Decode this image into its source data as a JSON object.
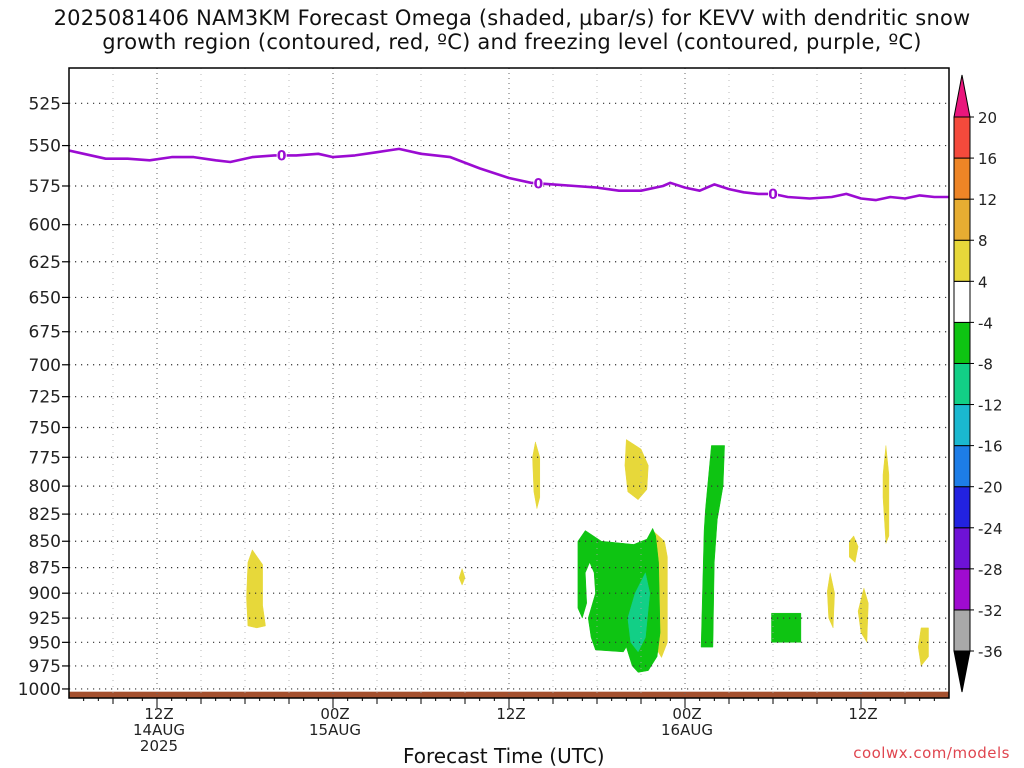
{
  "title": {
    "line1": "2025081406 NAM3KM Forecast Omega (shaded, µbar/s) for KEVV with dendritic snow",
    "line2": "growth region (contoured, red, ºC) and freezing level (contoured, purple, ºC)"
  },
  "watermark": "coolwx.com/models",
  "chart_data": {
    "type": "heatmap",
    "xlabel": "Forecast Time (UTC)",
    "ylabel": "",
    "x_range_hours": [
      6,
      66
    ],
    "ylim": [
      1010,
      505
    ],
    "y_scale": "log-pressure",
    "y_ticks": [
      525,
      550,
      575,
      600,
      625,
      650,
      675,
      700,
      725,
      750,
      775,
      800,
      825,
      850,
      875,
      900,
      925,
      950,
      975,
      1000
    ],
    "x_ticks": [
      {
        "hour": 12,
        "lines": [
          "12Z",
          "14AUG",
          "2025"
        ]
      },
      {
        "hour": 24,
        "lines": [
          "00Z",
          "15AUG"
        ]
      },
      {
        "hour": 36,
        "lines": [
          "12Z"
        ]
      },
      {
        "hour": 48,
        "lines": [
          "00Z",
          "16AUG"
        ]
      },
      {
        "hour": 60,
        "lines": [
          "12Z"
        ]
      }
    ],
    "grid": true,
    "colorbar": {
      "colors": [
        "#000000",
        "#a9a9a9",
        "#9f0bd0",
        "#6e12d6",
        "#2222e0",
        "#1d7de7",
        "#1ab8d0",
        "#12cf86",
        "#0ec412",
        "#ffffff",
        "#e7d83a",
        "#e7ad32",
        "#ee8526",
        "#f44a3c",
        "#e9167c"
      ],
      "labels": [
        "-36",
        "-32",
        "-28",
        "-24",
        "-20",
        "-16",
        "-12",
        "-8",
        "-4",
        "4",
        "8",
        "12",
        "16",
        "20"
      ],
      "levels": [
        -36,
        -32,
        -28,
        -24,
        -20,
        -16,
        -12,
        -8,
        -4,
        4,
        8,
        12,
        16,
        20
      ]
    },
    "freezing_level": {
      "color": "#9b0bd2",
      "label": "0",
      "label_hours": [
        20.5,
        38,
        54
      ],
      "points": [
        [
          6,
          553
        ],
        [
          7,
          555
        ],
        [
          8.5,
          558
        ],
        [
          10,
          558
        ],
        [
          11.5,
          559
        ],
        [
          13,
          557
        ],
        [
          14.5,
          557
        ],
        [
          16,
          559
        ],
        [
          17,
          560
        ],
        [
          18.5,
          557
        ],
        [
          20,
          556
        ],
        [
          21.5,
          556
        ],
        [
          23,
          555
        ],
        [
          24,
          557
        ],
        [
          25.5,
          556
        ],
        [
          27,
          554
        ],
        [
          28.5,
          552
        ],
        [
          30,
          555
        ],
        [
          32,
          557
        ],
        [
          34,
          564
        ],
        [
          36,
          570
        ],
        [
          37.5,
          573
        ],
        [
          39,
          574
        ],
        [
          40.5,
          575
        ],
        [
          42,
          576
        ],
        [
          43.5,
          578
        ],
        [
          45,
          578
        ],
        [
          46.5,
          575
        ],
        [
          47,
          573
        ],
        [
          48,
          576
        ],
        [
          49,
          578
        ],
        [
          50,
          574
        ],
        [
          51,
          577
        ],
        [
          52,
          579
        ],
        [
          53,
          580
        ],
        [
          54,
          580
        ],
        [
          55,
          582
        ],
        [
          56.5,
          583
        ],
        [
          58,
          582
        ],
        [
          59,
          580
        ],
        [
          60,
          583
        ],
        [
          61,
          584
        ],
        [
          62,
          582
        ],
        [
          63,
          583
        ],
        [
          64,
          581
        ],
        [
          65,
          582
        ],
        [
          66,
          582
        ]
      ]
    },
    "omega_areas": [
      {
        "value": 4,
        "color": "#e7d83a",
        "polygon": [
          [
            18.5,
            858
          ],
          [
            19.2,
            872
          ],
          [
            19.2,
            912
          ],
          [
            19.4,
            933
          ],
          [
            18.8,
            935
          ],
          [
            18.2,
            933
          ],
          [
            18.1,
            905
          ],
          [
            18.2,
            870
          ]
        ]
      },
      {
        "value": 4,
        "color": "#e7d83a",
        "polygon": [
          [
            32.8,
            876
          ],
          [
            33,
            885
          ],
          [
            32.8,
            892
          ],
          [
            32.6,
            885
          ]
        ]
      },
      {
        "value": 4,
        "color": "#e7d83a",
        "polygon": [
          [
            37.8,
            762
          ],
          [
            38.1,
            775
          ],
          [
            38.1,
            810
          ],
          [
            37.9,
            820
          ],
          [
            37.7,
            805
          ],
          [
            37.6,
            775
          ]
        ]
      },
      {
        "value": 4,
        "color": "#e7d83a",
        "polygon": [
          [
            44,
            760
          ],
          [
            45,
            768
          ],
          [
            45.5,
            782
          ],
          [
            45.4,
            803
          ],
          [
            44.8,
            812
          ],
          [
            44.1,
            805
          ],
          [
            43.9,
            782
          ]
        ]
      },
      {
        "value": 4,
        "color": "#e7d83a",
        "polygon": [
          [
            45.8,
            840
          ],
          [
            46.6,
            850
          ],
          [
            46.8,
            865
          ],
          [
            46.8,
            950
          ],
          [
            46.4,
            966
          ],
          [
            45.8,
            950
          ],
          [
            45.6,
            870
          ]
        ]
      },
      {
        "value": 4,
        "color": "#e7d83a",
        "polygon": [
          [
            59.5,
            845
          ],
          [
            59.8,
            855
          ],
          [
            59.6,
            870
          ],
          [
            59.2,
            865
          ],
          [
            59.2,
            850
          ]
        ]
      },
      {
        "value": 4,
        "color": "#e7d83a",
        "polygon": [
          [
            61.7,
            765
          ],
          [
            61.9,
            790
          ],
          [
            61.9,
            845
          ],
          [
            61.7,
            852
          ],
          [
            61.5,
            810
          ],
          [
            61.5,
            790
          ]
        ]
      },
      {
        "value": 4,
        "color": "#e7d83a",
        "polygon": [
          [
            57.9,
            880
          ],
          [
            58.2,
            900
          ],
          [
            58.1,
            935
          ],
          [
            57.8,
            925
          ],
          [
            57.7,
            898
          ]
        ]
      },
      {
        "value": 4,
        "color": "#e7d83a",
        "polygon": [
          [
            60.2,
            895
          ],
          [
            60.5,
            910
          ],
          [
            60.4,
            950
          ],
          [
            60.0,
            940
          ],
          [
            59.8,
            918
          ]
        ]
      },
      {
        "value": 4,
        "color": "#e7d83a",
        "polygon": [
          [
            64.1,
            935
          ],
          [
            64.6,
            935
          ],
          [
            64.6,
            965
          ],
          [
            64.1,
            975
          ],
          [
            63.9,
            955
          ]
        ]
      },
      {
        "value": -4,
        "color": "#0ec412",
        "polygon": [
          [
            41.2,
            840
          ],
          [
            42.3,
            850
          ],
          [
            44.5,
            853
          ],
          [
            45.4,
            848
          ],
          [
            45.8,
            838
          ],
          [
            46.0,
            845
          ],
          [
            46.2,
            870
          ],
          [
            46.3,
            940
          ],
          [
            46.1,
            965
          ],
          [
            45.5,
            980
          ],
          [
            44.8,
            982
          ],
          [
            44.4,
            975
          ],
          [
            44.0,
            955
          ],
          [
            43.8,
            960
          ],
          [
            41.9,
            958
          ],
          [
            41.6,
            945
          ],
          [
            41.4,
            925
          ],
          [
            41.9,
            900
          ],
          [
            41.8,
            880
          ],
          [
            41.5,
            870
          ],
          [
            41.2,
            880
          ],
          [
            41.3,
            910
          ],
          [
            41.0,
            925
          ],
          [
            40.7,
            915
          ],
          [
            40.7,
            850
          ]
        ]
      },
      {
        "value": -8,
        "color": "#12cf86",
        "polygon": [
          [
            45.3,
            880
          ],
          [
            45.6,
            900
          ],
          [
            45.3,
            945
          ],
          [
            44.8,
            960
          ],
          [
            44.3,
            950
          ],
          [
            44.1,
            925
          ],
          [
            44.6,
            900
          ]
        ]
      },
      {
        "value": -4,
        "color": "#0ec412",
        "polygon": [
          [
            49.8,
            765
          ],
          [
            50.7,
            765
          ],
          [
            50.6,
            800
          ],
          [
            50.2,
            830
          ],
          [
            50.0,
            870
          ],
          [
            49.9,
            955
          ],
          [
            49.1,
            955
          ],
          [
            49.3,
            840
          ],
          [
            49.4,
            820
          ]
        ]
      },
      {
        "value": -4,
        "color": "#0ec412",
        "polygon": [
          [
            53.9,
            920
          ],
          [
            55.9,
            920
          ],
          [
            55.9,
            950
          ],
          [
            53.9,
            950
          ]
        ]
      }
    ],
    "terrain": {
      "color": "#a4502e",
      "top_hpa": 1003
    }
  }
}
